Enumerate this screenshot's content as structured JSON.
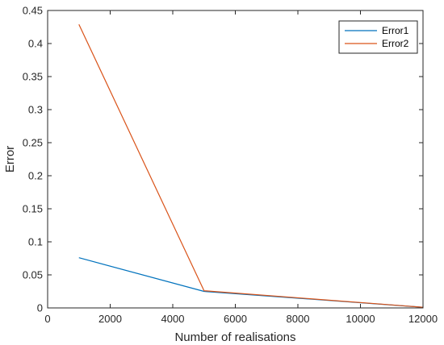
{
  "chart_data": {
    "type": "line",
    "title": "",
    "xlabel": "Number of realisations",
    "ylabel": "Error",
    "xlim": [
      0,
      12000
    ],
    "ylim": [
      0,
      0.45
    ],
    "xticks": [
      0,
      2000,
      4000,
      6000,
      8000,
      10000,
      12000
    ],
    "xtick_labels": [
      "0",
      "2000",
      "4000",
      "6000",
      "8000",
      "10000",
      "12000"
    ],
    "yticks": [
      0,
      0.05,
      0.1,
      0.15,
      0.2,
      0.25,
      0.3,
      0.35,
      0.4,
      0.45
    ],
    "ytick_labels": [
      "0",
      "0.05",
      "0.1",
      "0.15",
      "0.2",
      "0.25",
      "0.3",
      "0.35",
      "0.4",
      "0.45"
    ],
    "grid": false,
    "legend_position": "top-right",
    "series": [
      {
        "name": "Error1",
        "color": "#0072BD",
        "x": [
          1000,
          5000,
          12000
        ],
        "y": [
          0.076,
          0.025,
          0.001
        ]
      },
      {
        "name": "Error2",
        "color": "#D95319",
        "x": [
          1000,
          5000,
          12000
        ],
        "y": [
          0.429,
          0.026,
          0.001
        ]
      }
    ]
  }
}
